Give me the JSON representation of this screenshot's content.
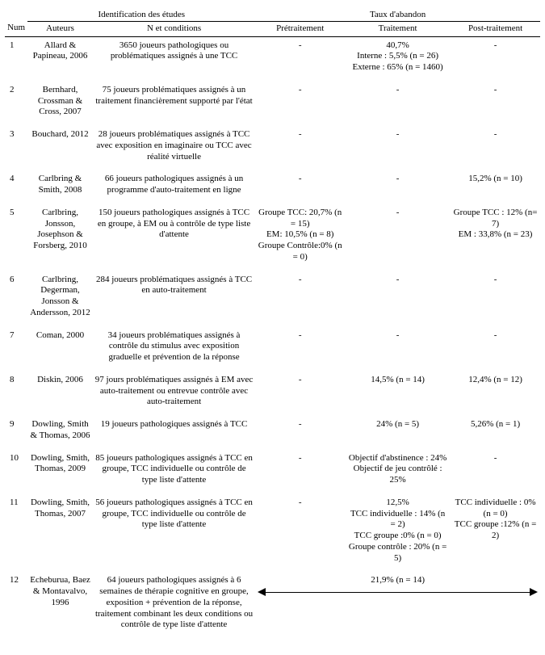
{
  "header": {
    "group_left": "Identification des études",
    "group_right": "Taux d'abandon",
    "cols": {
      "num": "Num",
      "auteurs": "Auteurs",
      "conditions": "N et conditions",
      "pretrait": "Prétraitement",
      "trait": "Traitement",
      "posttrait": "Post-traitement"
    }
  },
  "rows": [
    {
      "num": "1",
      "auteurs": "Allard & Papineau, 2006",
      "conditions": "3650 joueurs pathologiques ou problématiques assignés à une TCC",
      "pretrait": "-",
      "trait": "40,7%\nInterne : 5,5% (n = 26)\nExterne : 65% (n = 1460)",
      "posttrait": "-"
    },
    {
      "num": "2",
      "auteurs": "Bernhard, Crossman & Cross, 2007",
      "conditions": "75 joueurs problématiques assignés à un traitement financièrement supporté par l'état",
      "pretrait": "-",
      "trait": "-",
      "posttrait": "-"
    },
    {
      "num": "3",
      "auteurs": "Bouchard, 2012",
      "conditions": "28 joueurs problématiques assignés à TCC avec exposition en imaginaire ou TCC avec réalité virtuelle",
      "pretrait": "-",
      "trait": "-",
      "posttrait": "-"
    },
    {
      "num": "4",
      "auteurs": "Carlbring & Smith, 2008",
      "conditions": "66 joueurs pathologiques assignés à un programme d'auto-traitement en ligne",
      "pretrait": "-",
      "trait": "-",
      "posttrait": "15,2% (n = 10)"
    },
    {
      "num": "5",
      "auteurs": "Carlbring, Jonsson, Josephson & Forsberg, 2010",
      "conditions": "150 joueurs pathologiques assignés à TCC en groupe, à EM ou à contrôle de type liste d'attente",
      "pretrait": "Groupe TCC: 20,7% (n = 15)\nEM: 10,5% (n = 8)\nGroupe Contrôle:0% (n = 0)",
      "trait": "-",
      "posttrait": "Groupe TCC : 12% (n= 7)\nEM : 33,8% (n = 23)"
    },
    {
      "num": "6",
      "auteurs": "Carlbring, Degerman, Jonsson & Andersson, 2012",
      "conditions": "284 joueurs problématiques assignés à TCC en auto-traitement",
      "pretrait": "-",
      "trait": "-",
      "posttrait": "-"
    },
    {
      "num": "7",
      "auteurs": "Coman, 2000",
      "conditions": "34 joueurs problématiques assignés à contrôle du stimulus avec exposition graduelle et prévention de la réponse",
      "pretrait": "-",
      "trait": "-",
      "posttrait": "-"
    },
    {
      "num": "8",
      "auteurs": "Diskin, 2006",
      "conditions": "97 jours problématiques assignés à EM avec auto-traitement ou entrevue contrôle avec auto-traitement",
      "pretrait": "-",
      "trait": "14,5% (n = 14)",
      "posttrait": "12,4% (n = 12)"
    },
    {
      "num": "9",
      "auteurs": "Dowling, Smith & Thomas, 2006",
      "conditions": "19 joueurs pathologiques assignés à TCC",
      "pretrait": "-",
      "trait": "24% (n = 5)",
      "posttrait": "5,26% (n = 1)"
    },
    {
      "num": "10",
      "auteurs": "Dowling, Smith, Thomas, 2009",
      "conditions": "85 joueurs pathologiques assignés à TCC en groupe, TCC individuelle ou contrôle de type liste d'attente",
      "pretrait": "-",
      "trait": "Objectif d'abstinence : 24%\nObjectif de jeu contrôlé : 25%",
      "posttrait": "-"
    },
    {
      "num": "11",
      "auteurs": "Dowling, Smith, Thomas, 2007",
      "conditions": "56 joueurs pathologiques assignés à TCC en groupe, TCC individuelle ou contrôle de type liste d'attente",
      "pretrait": "-",
      "trait": "12,5%\nTCC individuelle : 14%  (n = 2)\nTCC groupe :0% (n = 0)\nGroupe contrôle : 20% (n = 5)",
      "posttrait": "TCC individuelle : 0% (n = 0)\nTCC groupe :12% (n = 2)"
    },
    {
      "num": "12",
      "auteurs": "Echeburua, Baez & Montavalvo, 1996",
      "conditions": "64 joueurs pathologiques assignés à 6 semaines de thérapie cognitive en groupe, exposition + prévention de la réponse, traitement combinant les deux conditions ou contrôle de type liste d'attente",
      "arrow_label": "21,9% (n = 14)"
    }
  ],
  "style": {
    "font_family": "Times New Roman",
    "font_size_pt": 9,
    "text_color": "#000000",
    "background_color": "#ffffff",
    "border_color": "#000000"
  }
}
